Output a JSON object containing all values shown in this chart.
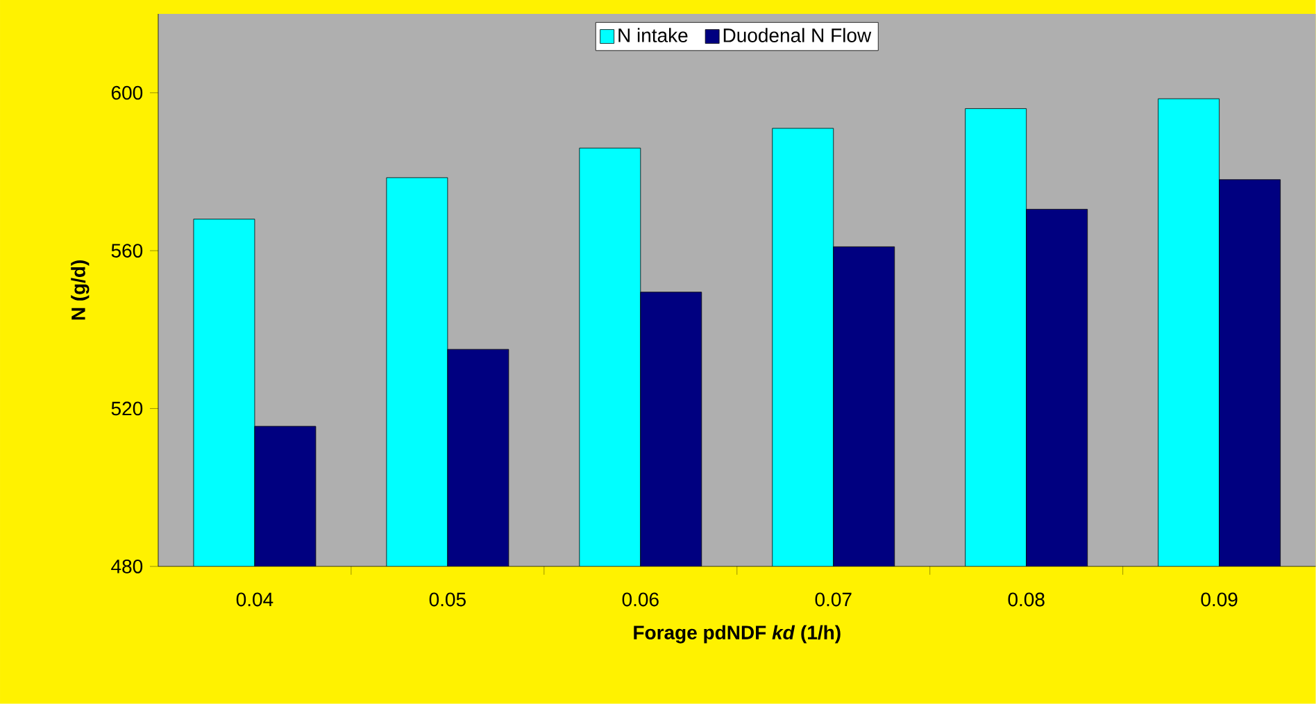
{
  "chart_data": {
    "type": "bar",
    "xlabel": "Forage pdNDF *kd* (1/h)",
    "ylabel": "N (g/d)",
    "categories": [
      "0.04",
      "0.05",
      "0.06",
      "0.07",
      "0.08",
      "0.09"
    ],
    "series": [
      {
        "name": "N intake",
        "color": "#00ffff",
        "values": [
          568,
          578.5,
          586,
          591,
          596,
          598.5
        ]
      },
      {
        "name": "Duodenal N Flow",
        "color": "#000080",
        "values": [
          515.5,
          535,
          549.5,
          561,
          570.5,
          578
        ]
      }
    ],
    "ylim": [
      480,
      620
    ],
    "yticks": [
      480,
      520,
      560,
      600
    ],
    "grid": false,
    "legend": "top"
  }
}
